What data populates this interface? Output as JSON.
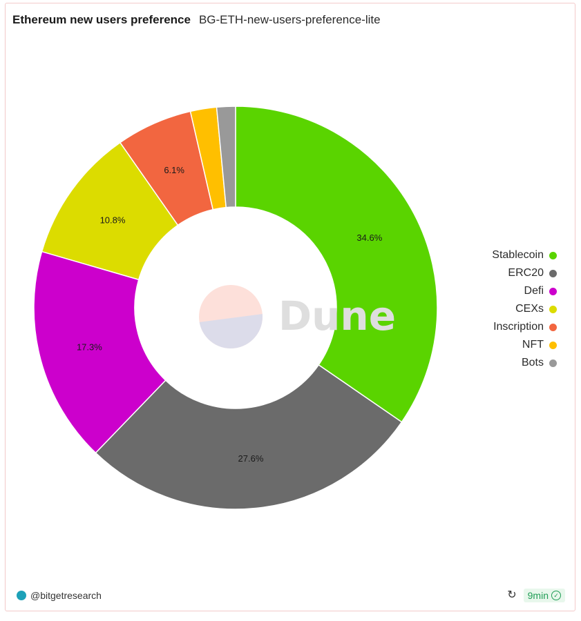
{
  "header": {
    "title": "Ethereum new users preference",
    "subtitle": "BG-ETH-new-users-preference-lite"
  },
  "watermark": {
    "text": "Dune"
  },
  "chart_data": {
    "type": "pie",
    "variant": "donut",
    "slices": [
      {
        "label": "Stablecoin",
        "value": 34.6,
        "color": "#5ad400",
        "show_label": true
      },
      {
        "label": "ERC20",
        "value": 27.6,
        "color": "#6b6b6b",
        "show_label": true
      },
      {
        "label": "Defi",
        "value": 17.3,
        "color": "#cc00cc",
        "show_label": true
      },
      {
        "label": "CEXs",
        "value": 10.8,
        "color": "#dcdc00",
        "show_label": true
      },
      {
        "label": "Inscription",
        "value": 6.1,
        "color": "#f26640",
        "show_label": true
      },
      {
        "label": "NFT",
        "value": 2.1,
        "color": "#ffbf00",
        "show_label": false
      },
      {
        "label": "Bots",
        "value": 1.5,
        "color": "#999999",
        "show_label": false
      }
    ],
    "legend_position": "right"
  },
  "footer": {
    "author": "@bitgetresearch",
    "refresh_age": "9min",
    "icons": {
      "refresh": "refresh-icon",
      "check": "check-icon",
      "avatar": "avatar"
    }
  }
}
